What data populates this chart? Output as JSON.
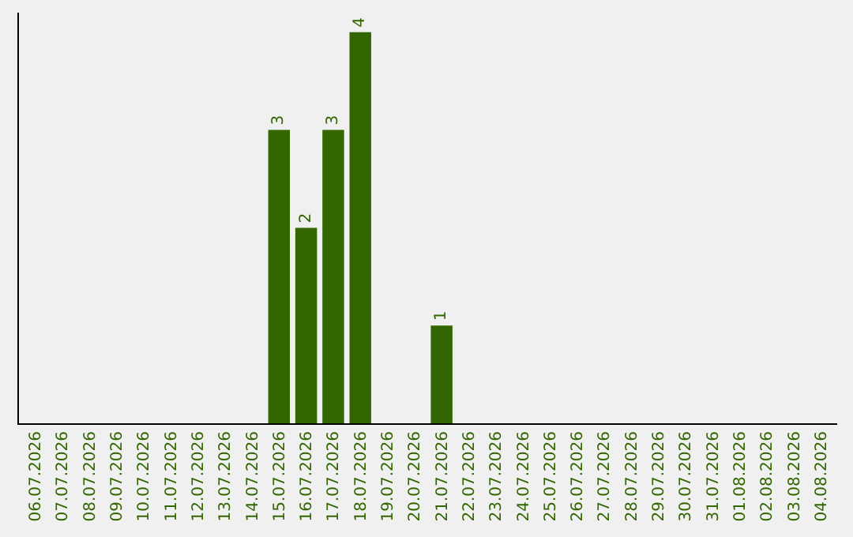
{
  "chart_data": {
    "type": "bar",
    "categories": [
      "06.07.2026",
      "07.07.2026",
      "08.07.2026",
      "09.07.2026",
      "10.07.2026",
      "11.07.2026",
      "12.07.2026",
      "13.07.2026",
      "14.07.2026",
      "15.07.2026",
      "16.07.2026",
      "17.07.2026",
      "18.07.2026",
      "19.07.2026",
      "20.07.2026",
      "21.07.2026",
      "22.07.2026",
      "23.07.2026",
      "24.07.2026",
      "25.07.2026",
      "26.07.2026",
      "27.07.2026",
      "28.07.2026",
      "29.07.2026",
      "30.07.2026",
      "31.07.2026",
      "01.08.2026",
      "02.08.2026",
      "03.08.2026",
      "04.08.2026"
    ],
    "values": [
      0,
      0,
      0,
      0,
      0,
      0,
      0,
      0,
      0,
      3,
      2,
      3,
      4,
      0,
      0,
      1,
      0,
      0,
      0,
      0,
      0,
      0,
      0,
      0,
      0,
      0,
      0,
      0,
      0,
      0
    ],
    "value_labels": [
      null,
      null,
      null,
      null,
      null,
      null,
      null,
      null,
      null,
      "3",
      "2",
      "3",
      "4",
      null,
      null,
      "1",
      null,
      null,
      null,
      null,
      null,
      null,
      null,
      null,
      null,
      null,
      null,
      null,
      null,
      null
    ],
    "color": "#336600",
    "ylim": [
      0,
      4.2
    ],
    "tick_labels": "x",
    "grid": false,
    "legend": false
  }
}
